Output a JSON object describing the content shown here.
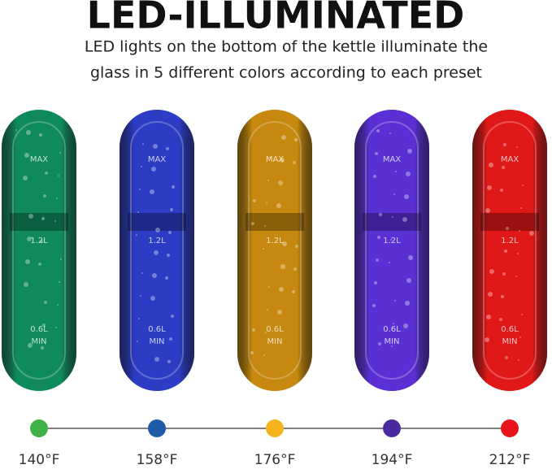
{
  "header": {
    "title": "LED-ILLUMINATED",
    "subtitle_lines": [
      "LED lights on the bottom of the kettle illuminate the",
      "glass in 5 different colors according to each preset"
    ]
  },
  "kettle_markings": [
    "MAX",
    "1.2L",
    "0.6L",
    "MIN"
  ],
  "presets": [
    {
      "temperature": "140°F",
      "glass_color": "#0e8a5c",
      "dot_color": "#3fb04a"
    },
    {
      "temperature": "158°F",
      "glass_color": "#2c3cc4",
      "dot_color": "#1e5aa8"
    },
    {
      "temperature": "176°F",
      "glass_color": "#c6880e",
      "dot_color": "#f3b31c"
    },
    {
      "temperature": "194°F",
      "glass_color": "#5a2fd4",
      "dot_color": "#4b2aa0"
    },
    {
      "temperature": "212°F",
      "glass_color": "#e01818",
      "dot_color": "#e8141c"
    }
  ]
}
